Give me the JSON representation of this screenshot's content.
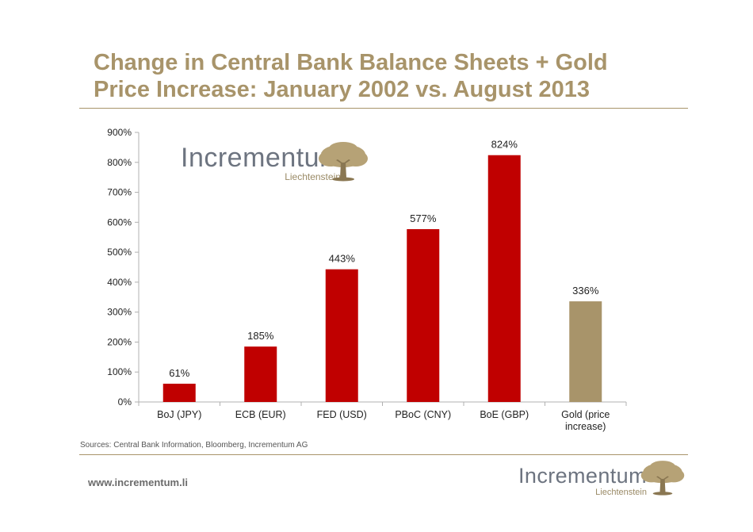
{
  "slide": {
    "title_line1": "Change in Central Bank Balance Sheets + Gold",
    "title_line2": "Price Increase: January 2002 vs. August 2013",
    "sources": "Sources: Central Bank Information, Bloomberg, Incrementum AG",
    "website": "www.incrementum.li"
  },
  "logo": {
    "brand": "Incrementum",
    "sub": "Liechtenstein",
    "icon": "oak-tree-icon"
  },
  "colors": {
    "title": "#a8946a",
    "bar_red": "#c00000",
    "bar_gold": "#a8946a",
    "axis": "#b0b0b0"
  },
  "chart_data": {
    "type": "bar",
    "title": "",
    "xlabel": "",
    "ylabel": "",
    "categories": [
      "BoJ (JPY)",
      "ECB (EUR)",
      "FED (USD)",
      "PBoC (CNY)",
      "BoE (GBP)",
      "Gold (price increase)"
    ],
    "category_lines": [
      [
        "BoJ (JPY)"
      ],
      [
        "ECB (EUR)"
      ],
      [
        "FED (USD)"
      ],
      [
        "PBoC (CNY)"
      ],
      [
        "BoE (GBP)"
      ],
      [
        "Gold (price",
        "increase)"
      ]
    ],
    "values": [
      61,
      185,
      443,
      577,
      824,
      336
    ],
    "data_labels": [
      "61%",
      "185%",
      "443%",
      "577%",
      "824%",
      "336%"
    ],
    "bar_colors": [
      "#c00000",
      "#c00000",
      "#c00000",
      "#c00000",
      "#c00000",
      "#a8946a"
    ],
    "ylim": [
      0,
      900
    ],
    "yticks": [
      0,
      100,
      200,
      300,
      400,
      500,
      600,
      700,
      800,
      900
    ],
    "ytick_labels": [
      "0%",
      "100%",
      "200%",
      "300%",
      "400%",
      "500%",
      "600%",
      "700%",
      "800%",
      "900%"
    ],
    "grid": false,
    "legend": "none"
  }
}
